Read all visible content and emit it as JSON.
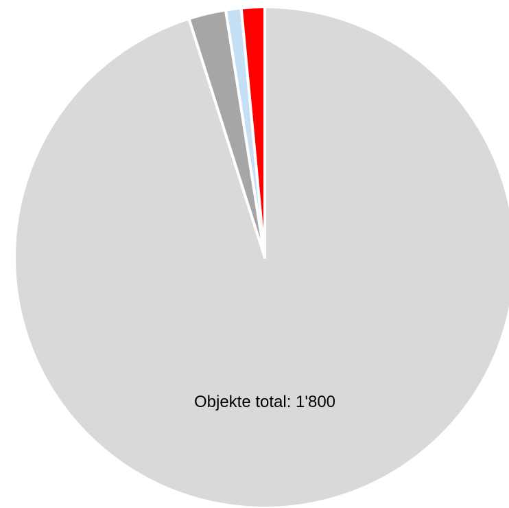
{
  "chart_data": {
    "type": "pie",
    "start_angle_deg": 0,
    "direction": "clockwise",
    "slices": [
      {
        "value": 95.1,
        "color": "#d9d9d9"
      },
      {
        "value": 2.4,
        "color": "#a6a6a6"
      },
      {
        "value": 1.0,
        "color": "#c5e0f5"
      },
      {
        "value": 1.5,
        "color": "#ff0000"
      }
    ],
    "annotation": "Objekte total: 1'800"
  }
}
